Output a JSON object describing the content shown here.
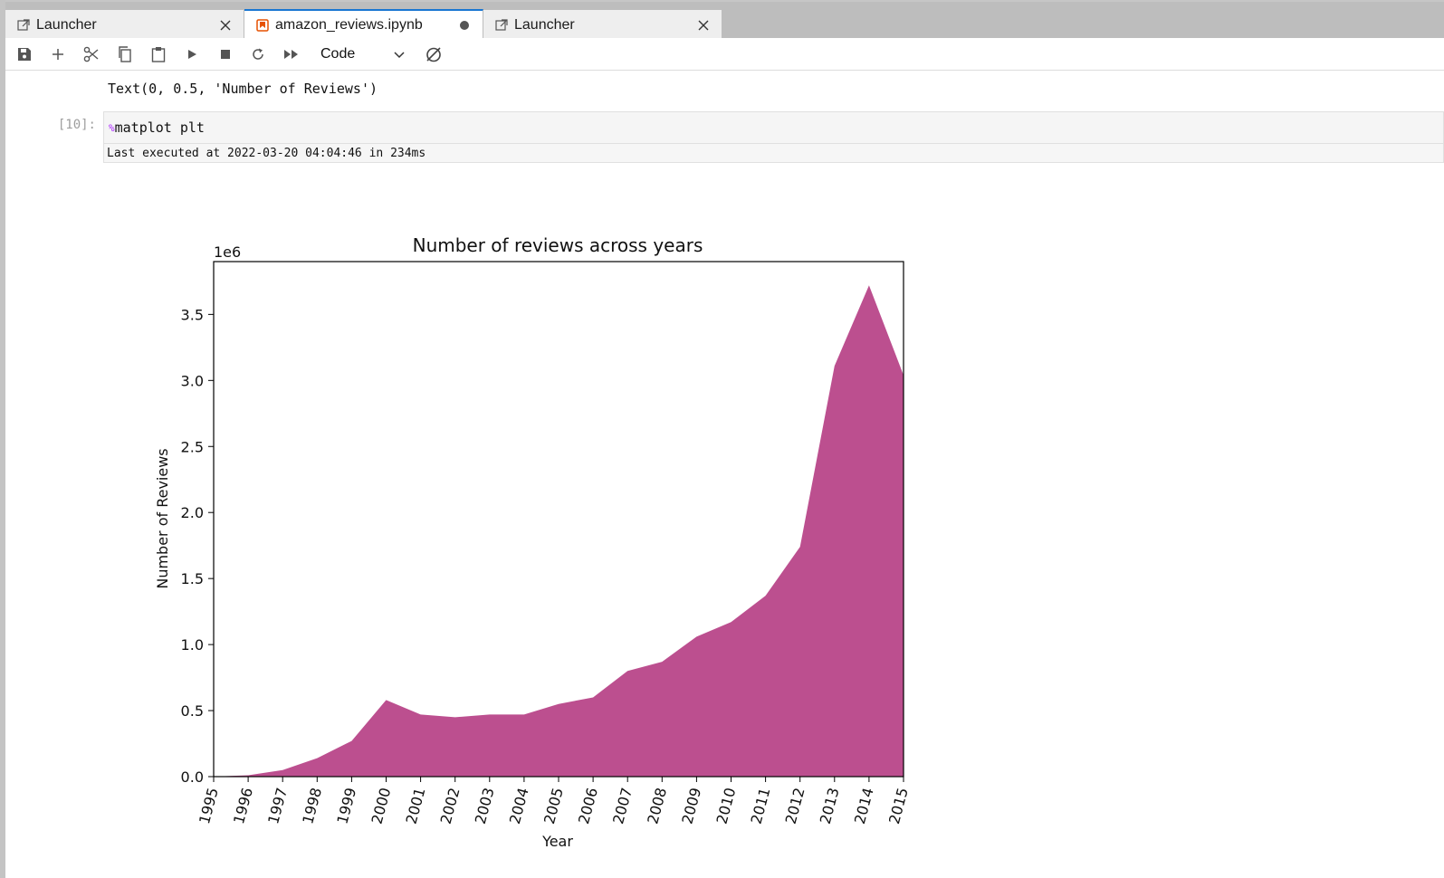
{
  "tabs": [
    {
      "label": "Launcher",
      "icon": "launcher-icon",
      "state": "close"
    },
    {
      "label": "amazon_reviews.ipynb",
      "icon": "notebook-icon",
      "state": "unsaved-dot"
    },
    {
      "label": "Launcher",
      "icon": "launcher-icon",
      "state": "close"
    }
  ],
  "toolbar": {
    "buttons": [
      "save-icon",
      "plus-icon",
      "cut-icon",
      "copy-icon",
      "paste-icon",
      "run-icon",
      "stop-icon",
      "restart-icon",
      "run-all-icon",
      "kernel-status-icon"
    ],
    "cell_type": "Code"
  },
  "notebook": {
    "prev_output": "Text(0, 0.5, 'Number of Reviews')",
    "cell": {
      "prompt": "[10]:",
      "magic_symbol": "%",
      "code": "matplot plt",
      "exec_note": "Last executed at 2022-03-20 04:04:46 in 234ms"
    }
  },
  "colors": {
    "accent": "#1976d2",
    "area_fill": "#bc4f8f",
    "notebook_icon": "#e65100"
  },
  "chart_data": {
    "type": "area",
    "title": "Number of reviews across years",
    "xlabel": "Year",
    "ylabel": "Number of Reviews",
    "y_offset_label": "1e6",
    "x": [
      1995,
      1996,
      1997,
      1998,
      1999,
      2000,
      2001,
      2002,
      2003,
      2004,
      2005,
      2006,
      2007,
      2008,
      2009,
      2010,
      2011,
      2012,
      2013,
      2014,
      2015
    ],
    "values": [
      0.0,
      0.01,
      0.05,
      0.14,
      0.27,
      0.58,
      0.47,
      0.45,
      0.47,
      0.47,
      0.55,
      0.6,
      0.8,
      0.87,
      1.06,
      1.17,
      1.37,
      1.74,
      3.11,
      3.72,
      3.04
    ],
    "xlim": [
      1995,
      2015
    ],
    "ylim": [
      0,
      3.9
    ],
    "yticks": [
      "0.0",
      "0.5",
      "1.0",
      "1.5",
      "2.0",
      "2.5",
      "3.0",
      "3.5"
    ],
    "xticks": [
      "1995",
      "1996",
      "1997",
      "1998",
      "1999",
      "2000",
      "2001",
      "2002",
      "2003",
      "2004",
      "2005",
      "2006",
      "2007",
      "2008",
      "2009",
      "2010",
      "2011",
      "2012",
      "2013",
      "2014",
      "2015"
    ],
    "grid": false
  }
}
